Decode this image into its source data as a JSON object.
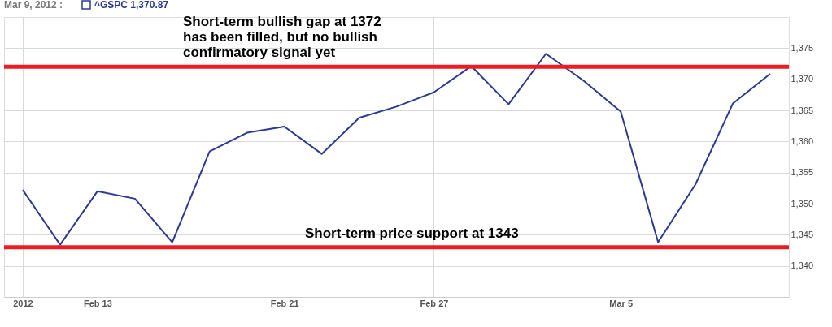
{
  "chart_data": {
    "type": "line",
    "title": "Mar 9, 2012 :",
    "categories": [
      "2012",
      null,
      "Feb 13",
      null,
      null,
      null,
      null,
      "Feb 21",
      null,
      null,
      null,
      "Feb 27",
      null,
      null,
      null,
      null,
      "Mar 5",
      null,
      null,
      null,
      null
    ],
    "series": [
      {
        "name": "^GSPC 1,370.87",
        "color": "#2b3990",
        "values": [
          1352.2,
          1343.4,
          1352.0,
          1350.8,
          1343.8,
          1358.4,
          1361.4,
          1362.4,
          1358.0,
          1363.8,
          1365.6,
          1367.9,
          1372.1,
          1366.0,
          1374.1,
          1369.8,
          1364.8,
          1343.8,
          1353.1,
          1366.1,
          1370.87
        ]
      }
    ],
    "ylim": [
      1335,
      1380
    ],
    "yticks": [
      {
        "value": 1340,
        "label": "1,340"
      },
      {
        "value": 1345,
        "label": "1,345"
      },
      {
        "value": 1350,
        "label": "1,350"
      },
      {
        "value": 1355,
        "label": "1,355"
      },
      {
        "value": 1360,
        "label": "1,360"
      },
      {
        "value": 1365,
        "label": "1,365"
      },
      {
        "value": 1370,
        "label": "1,370"
      },
      {
        "value": 1375,
        "label": "1,375"
      }
    ],
    "ref_lines": [
      {
        "axis": "y",
        "value": 1372,
        "label": "Short-term bullish gap at 1372\nhas been filled, but no bullish\nconfirmatory signal yet",
        "color": "#ed1c24",
        "line_style": "solid"
      },
      {
        "axis": "y",
        "value": 1343,
        "label": "Short-term price support at 1343",
        "color": "#ed1c24",
        "line_style": "solid"
      }
    ],
    "grid": true,
    "legend": "top left",
    "marker": "none",
    "line_style": "solid"
  }
}
